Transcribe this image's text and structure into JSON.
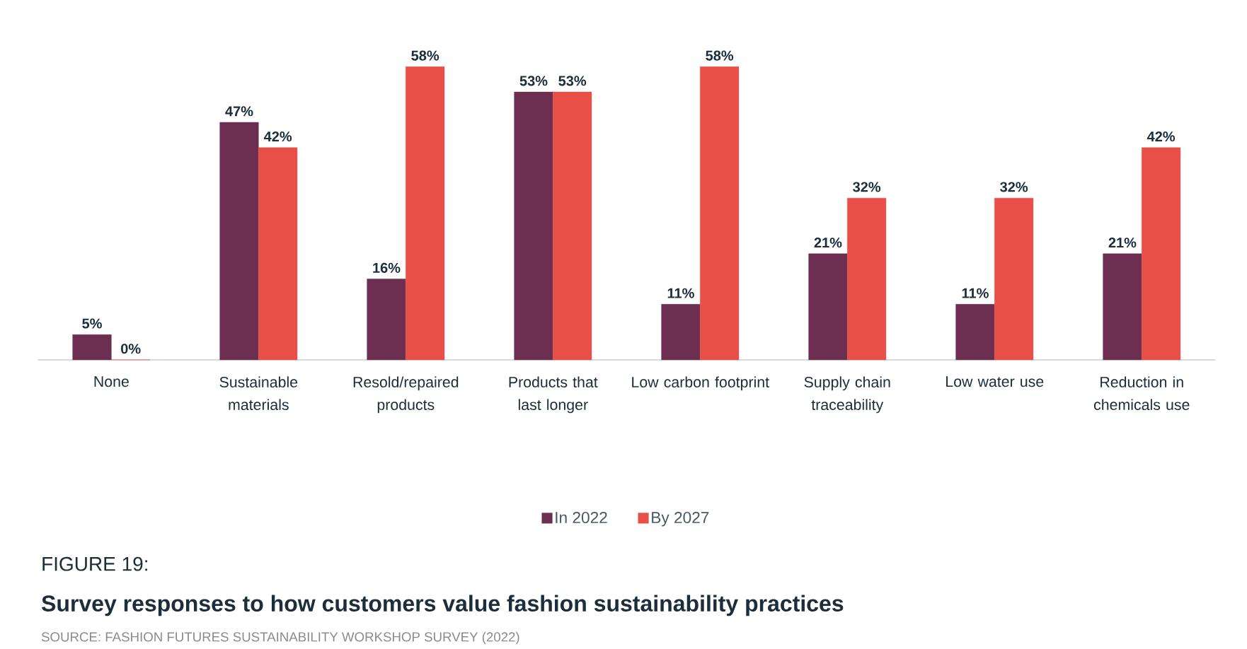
{
  "chart_data": {
    "type": "bar",
    "title": "Survey responses to how customers value fashion sustainability practices",
    "annotations": [
      "FIGURE 19:",
      "SOURCE: FASHION FUTURES SUSTAINABILITY WORKSHOP SURVEY (2022)"
    ],
    "categories": [
      "None",
      "Sustainable materials",
      "Resold/repaired products",
      "Products that last longer",
      "Low carbon footprint",
      "Supply chain traceability",
      "Low water use",
      "Reduction in chemicals use"
    ],
    "series": [
      {
        "name": "In 2022",
        "color": "#6c2f51",
        "values": [
          5,
          47,
          16,
          53,
          11,
          21,
          11,
          21
        ],
        "value_labels": [
          "5%",
          "47%",
          "16%",
          "53%",
          "11%",
          "21%",
          "11%",
          "21%"
        ]
      },
      {
        "name": "By 2027",
        "color": "#e84f47",
        "values": [
          0,
          42,
          58,
          53,
          58,
          32,
          32,
          42
        ],
        "value_labels": [
          "0%",
          "42%",
          "58%",
          "53%",
          "58%",
          "32%",
          "32%",
          "42%"
        ]
      }
    ],
    "legend": "bottom"
  }
}
